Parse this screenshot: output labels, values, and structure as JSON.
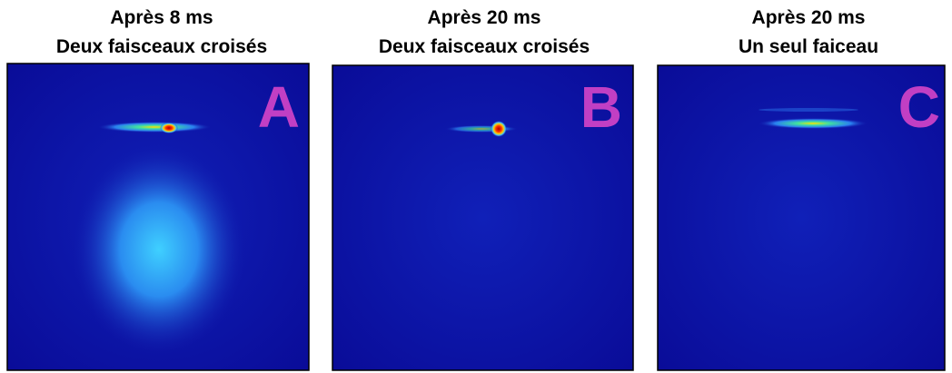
{
  "panels": [
    {
      "title": [
        "Après 8 ms",
        "Deux faisceaux croisés"
      ],
      "label": "A"
    },
    {
      "title": [
        "Après 20 ms",
        "Deux faisceaux croisés"
      ],
      "label": "B"
    },
    {
      "title": [
        "Après 20 ms",
        "Un seul faiceau"
      ],
      "label": "C"
    }
  ]
}
